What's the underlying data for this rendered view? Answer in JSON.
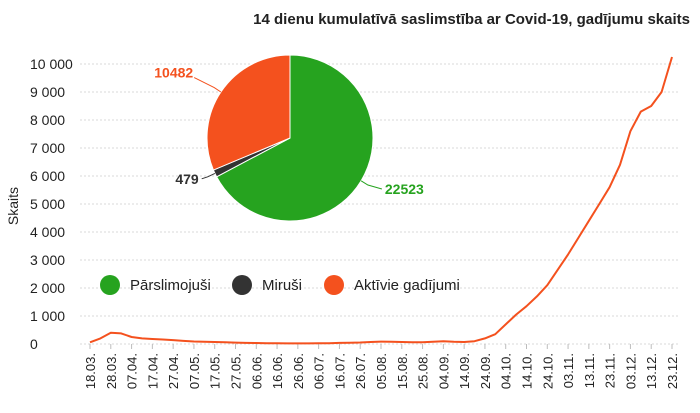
{
  "chart_data": [
    {
      "type": "line",
      "title": "14 dienu kumulatīvā saslimstība ar Covid-19, gadījumu skaits",
      "ylabel": "Skaits",
      "xlabel": "",
      "ylim": [
        0,
        10000
      ],
      "y_ticks": [
        "0",
        "1 000",
        "2 000",
        "3 000",
        "4 000",
        "5 000",
        "6 000",
        "7 000",
        "8 000",
        "9 000",
        "10 000"
      ],
      "x_ticks": [
        "18.03.",
        "28.03.",
        "07.04.",
        "17.04.",
        "27.04.",
        "07.05.",
        "17.05.",
        "27.05.",
        "06.06.",
        "16.06.",
        "26.06.",
        "06.07.",
        "16.07.",
        "26.07.",
        "05.08.",
        "15.08.",
        "25.08.",
        "04.09.",
        "14.09.",
        "24.09.",
        "04.10.",
        "14.10.",
        "24.10.",
        "03.11.",
        "13.11.",
        "23.11.",
        "03.12.",
        "13.12.",
        "23.12."
      ],
      "series_color": "#f4511e",
      "x": [
        "18.03.",
        "23.03.",
        "28.03.",
        "02.04.",
        "07.04.",
        "12.04.",
        "17.04.",
        "22.04.",
        "27.04.",
        "02.05.",
        "07.05.",
        "12.05.",
        "17.05.",
        "22.05.",
        "27.05.",
        "01.06.",
        "06.06.",
        "11.06.",
        "16.06.",
        "21.06.",
        "26.06.",
        "01.07.",
        "06.07.",
        "11.07.",
        "16.07.",
        "21.07.",
        "26.07.",
        "31.07.",
        "05.08.",
        "10.08.",
        "15.08.",
        "20.08.",
        "25.08.",
        "30.08.",
        "04.09.",
        "09.09.",
        "14.09.",
        "19.09.",
        "24.09.",
        "29.09.",
        "04.10.",
        "09.10.",
        "14.10.",
        "19.10.",
        "24.10.",
        "29.10.",
        "03.11.",
        "08.11.",
        "13.11.",
        "18.11.",
        "23.11.",
        "28.11.",
        "03.12.",
        "08.12.",
        "13.12.",
        "18.12.",
        "23.12."
      ],
      "values": [
        60,
        200,
        400,
        380,
        250,
        200,
        180,
        160,
        140,
        110,
        90,
        80,
        70,
        60,
        50,
        40,
        35,
        30,
        25,
        20,
        20,
        20,
        25,
        30,
        40,
        45,
        55,
        70,
        85,
        80,
        70,
        60,
        60,
        80,
        100,
        80,
        70,
        100,
        200,
        350,
        700,
        1050,
        1350,
        1700,
        2100,
        2650,
        3200,
        3800,
        4400,
        5000,
        5600,
        6400,
        7600,
        8300,
        8500,
        9000,
        10250
      ]
    },
    {
      "type": "pie",
      "labels": [
        "Pārslimojuši",
        "Miruši",
        "Aktīvie gadījumi"
      ],
      "values": [
        22523,
        479,
        10482
      ],
      "value_labels": [
        "22523",
        "479",
        "10482"
      ],
      "colors": [
        "#26a31f",
        "#333333",
        "#f4511e"
      ],
      "legend_position": "below-pie"
    }
  ]
}
